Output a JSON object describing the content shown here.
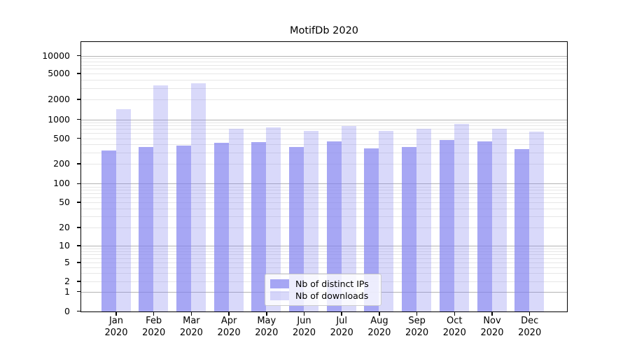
{
  "chart_data": {
    "type": "bar",
    "title": "MotifDb 2020",
    "categories": [
      "Jan",
      "Feb",
      "Mar",
      "Apr",
      "May",
      "Jun",
      "Jul",
      "Aug",
      "Sep",
      "Oct",
      "Nov",
      "Dec"
    ],
    "x_year_suffix": "2020",
    "series": [
      {
        "name": "Nb of distinct IPs",
        "color": "rgba(130,130,240,0.7)",
        "values": [
          325,
          370,
          385,
          430,
          440,
          370,
          455,
          355,
          370,
          470,
          450,
          340
        ]
      },
      {
        "name": "Nb of downloads",
        "color": "rgba(130,130,240,0.3)",
        "values": [
          1450,
          3300,
          3600,
          720,
          760,
          670,
          790,
          665,
          720,
          865,
          710,
          655
        ]
      }
    ],
    "y_ticks": [
      0,
      1,
      2,
      5,
      10,
      20,
      50,
      100,
      200,
      500,
      1000,
      2000,
      5000,
      10000
    ],
    "ylim": [
      0,
      17000
    ],
    "yscale": "symlog",
    "grid": true,
    "legend_position": "bottom-center-inside",
    "colors": {
      "grid_major": "#b3b3b3",
      "grid_minor": "#e7e7e7",
      "axis": "#000000",
      "legend_border": "#cccccc",
      "legend_background": "rgba(255,255,255,0.8)",
      "background": "#ffffff",
      "text": "#000000"
    }
  }
}
